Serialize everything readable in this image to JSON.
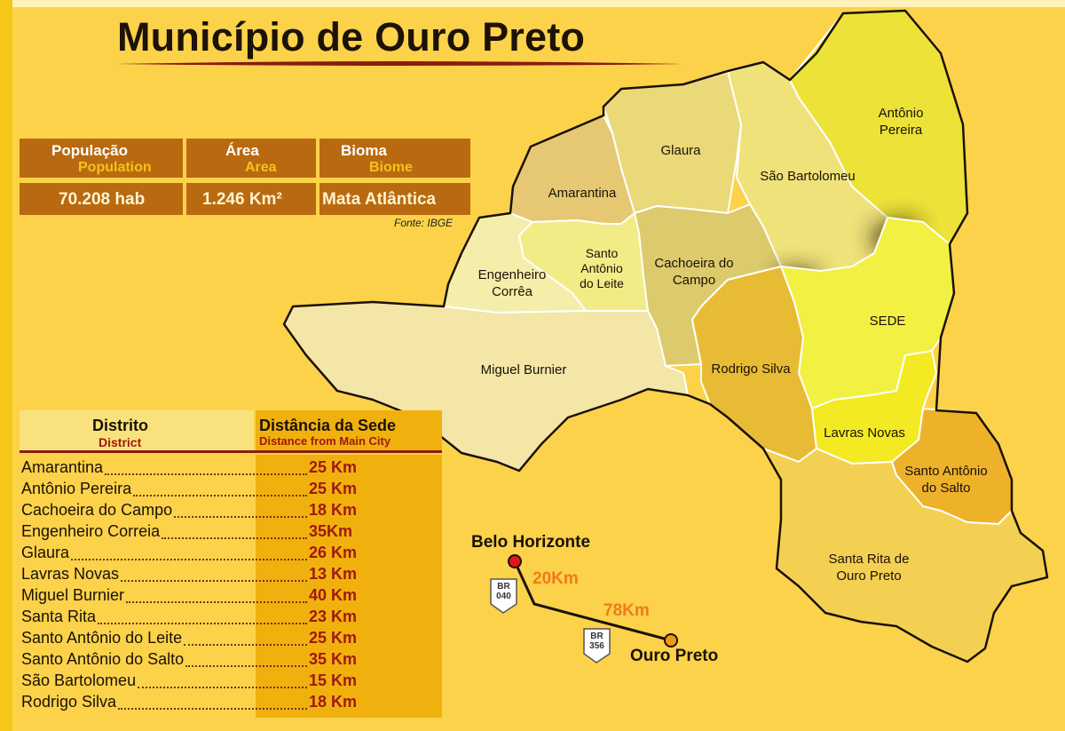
{
  "title": "Município de Ouro Preto",
  "stats": {
    "headers": [
      {
        "pt": "População",
        "en": "Population"
      },
      {
        "pt": "Área",
        "en": "Area"
      },
      {
        "pt": "Bioma",
        "en": "Biome"
      }
    ],
    "values": [
      "70.208 hab",
      "1.246 Km²",
      "Mata Atlântica"
    ],
    "source": "Fonte: IBGE"
  },
  "district_table": {
    "header": {
      "district_pt": "Distrito",
      "district_en": "District",
      "distance_pt": "Distância da Sede",
      "distance_en": "Distance from Main City"
    },
    "rows": [
      {
        "name": "Amarantina",
        "distance": "25 Km"
      },
      {
        "name": "Antônio Pereira",
        "distance": "25 Km"
      },
      {
        "name": "Cachoeira do Campo",
        "distance": "18 Km"
      },
      {
        "name": "Engenheiro Correia",
        "distance": "35Km"
      },
      {
        "name": "Glaura",
        "distance": "26 Km"
      },
      {
        "name": "Lavras Novas",
        "distance": "13 Km"
      },
      {
        "name": "Miguel Burnier",
        "distance": "40 Km"
      },
      {
        "name": "Santa Rita",
        "distance": "23 Km"
      },
      {
        "name": "Santo Antônio do Leite",
        "distance": "25 Km"
      },
      {
        "name": "Santo Antônio do Salto",
        "distance": "35 Km"
      },
      {
        "name": "São Bartolomeu",
        "distance": "15 Km"
      },
      {
        "name": "Rodrigo Silva",
        "distance": "18 Km"
      }
    ]
  },
  "map": {
    "districts": [
      {
        "key": "glaura",
        "label": [
          "Glaura"
        ],
        "color": "#ead978"
      },
      {
        "key": "antonio_pereira",
        "label": [
          "Antônio",
          "Pereira"
        ],
        "color": "#ece238"
      },
      {
        "key": "sao_bartolomeu",
        "label": [
          "São Bartolomeu"
        ],
        "color": "#efe27a"
      },
      {
        "key": "amarantina",
        "label": [
          "Amarantina"
        ],
        "color": "#e6c874"
      },
      {
        "key": "engenheiro_correa",
        "label": [
          "Engenheiro",
          "Corrêa"
        ],
        "color": "#f5eeaa"
      },
      {
        "key": "santo_antonio_leite",
        "label": [
          "Santo",
          "Antônio",
          "do Leite"
        ],
        "color": "#f2ec86"
      },
      {
        "key": "cachoeira_campo",
        "label": [
          "Cachoeira do",
          "Campo"
        ],
        "color": "#dcca6c"
      },
      {
        "key": "miguel_burnier",
        "label": [
          "Miguel Burnier"
        ],
        "color": "#f3e6a6"
      },
      {
        "key": "sede",
        "label": [
          "SEDE"
        ],
        "color": "#f2f042"
      },
      {
        "key": "rodrigo_silva",
        "label": [
          "Rodrigo Silva"
        ],
        "color": "#e8bb34"
      },
      {
        "key": "lavras_novas",
        "label": [
          "Lavras Novas"
        ],
        "color": "#f3ea22"
      },
      {
        "key": "santo_antonio_salto",
        "label": [
          "Santo Antônio",
          "do Salto"
        ],
        "color": "#eeb22a"
      },
      {
        "key": "santa_rita",
        "label": [
          "Santa Rita de",
          "Ouro Preto"
        ],
        "color": "#f4d052"
      }
    ],
    "route": {
      "origin": "Belo Horizonte",
      "destination": "Ouro Preto",
      "distance_1": "20Km",
      "distance_2": "78Km",
      "shield_1": [
        "BR",
        "040"
      ],
      "shield_2": [
        "BR",
        "356"
      ]
    }
  },
  "colors": {
    "background": "#fcd24a",
    "stats_box": "#b96a10",
    "distance_text": "#a0180f",
    "km_text": "#f07a1c"
  }
}
